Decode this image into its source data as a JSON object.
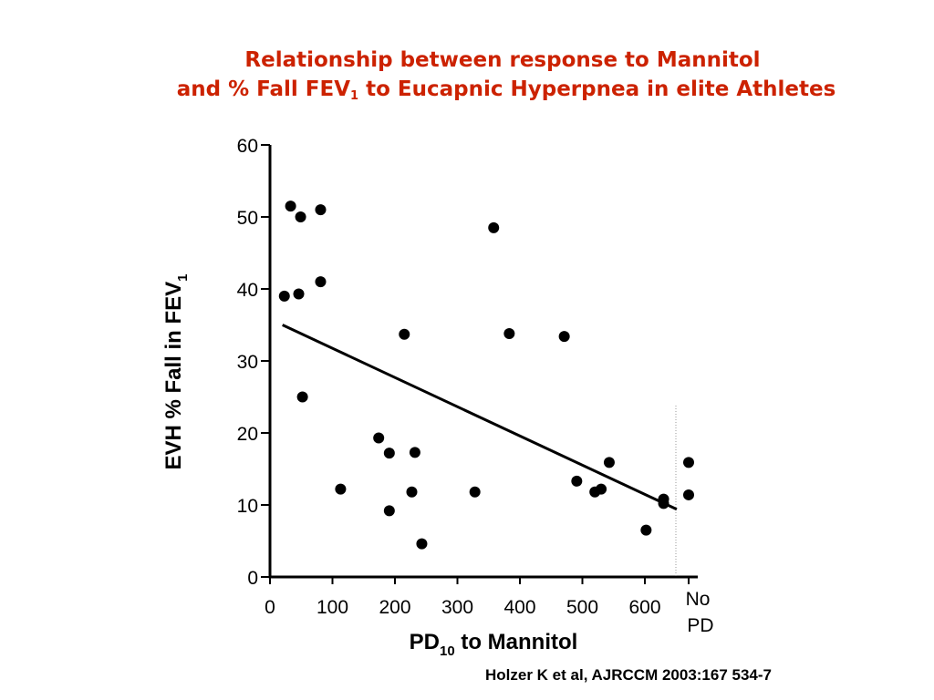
{
  "title": {
    "line1": "Relationship between response to Mannitol",
    "line2_prefix": "and % Fall FEV",
    "line2_sub": "1",
    "line2_suffix": " to Eucapnic Hyperpnea in elite Athletes"
  },
  "citation": "Holzer K et al, AJRCCM 2003:167 534-7",
  "chart_data": {
    "type": "scatter",
    "xlabel_prefix": "PD",
    "xlabel_sub": "10",
    "xlabel_suffix": " to Mannitol",
    "ylabel_prefix": "EVH % Fall in FEV",
    "ylabel_sub": "1",
    "xlim": [
      0,
      660
    ],
    "ylim": [
      0,
      60
    ],
    "x_ticks": [
      0,
      100,
      200,
      300,
      400,
      500,
      600
    ],
    "y_ticks": [
      0,
      10,
      20,
      30,
      40,
      50,
      60
    ],
    "no_pd_label_line1": "No",
    "no_pd_label_line2": "PD",
    "points": [
      {
        "x": 33,
        "y": 51.5
      },
      {
        "x": 49,
        "y": 50
      },
      {
        "x": 81,
        "y": 51
      },
      {
        "x": 81,
        "y": 41
      },
      {
        "x": 23,
        "y": 39
      },
      {
        "x": 46,
        "y": 39.3
      },
      {
        "x": 52,
        "y": 25
      },
      {
        "x": 113,
        "y": 12.2
      },
      {
        "x": 174,
        "y": 19.3
      },
      {
        "x": 191,
        "y": 17.2
      },
      {
        "x": 191,
        "y": 9.2
      },
      {
        "x": 215,
        "y": 33.7
      },
      {
        "x": 227,
        "y": 11.8
      },
      {
        "x": 232,
        "y": 17.3
      },
      {
        "x": 243,
        "y": 4.6
      },
      {
        "x": 328,
        "y": 11.8
      },
      {
        "x": 358,
        "y": 48.5
      },
      {
        "x": 383,
        "y": 33.8
      },
      {
        "x": 471,
        "y": 33.4
      },
      {
        "x": 491,
        "y": 13.3
      },
      {
        "x": 520,
        "y": 11.8
      },
      {
        "x": 530,
        "y": 12.2
      },
      {
        "x": 543,
        "y": 15.9
      },
      {
        "x": 602,
        "y": 6.5
      },
      {
        "x": 630,
        "y": 10.2
      },
      {
        "x": 630,
        "y": 10.8
      }
    ],
    "no_pd_points": [
      {
        "y": 15.9
      },
      {
        "y": 11.4
      }
    ],
    "trendline": {
      "x1": 20,
      "y1": 35,
      "x2": 651,
      "y2": 9.4
    },
    "grid": false,
    "legend": "none"
  }
}
